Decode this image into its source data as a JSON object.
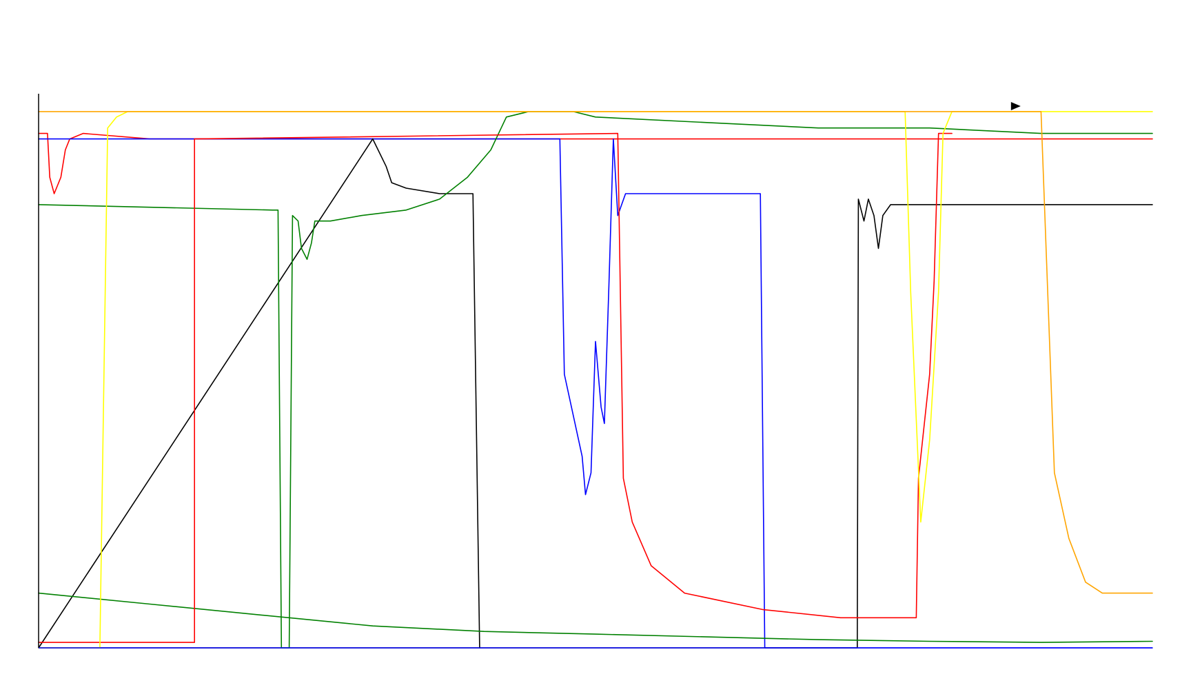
{
  "chart_data": {
    "type": "line",
    "title": "",
    "xlabel": "",
    "ylabel": "",
    "xlim": [
      0,
      1000
    ],
    "ylim": [
      0,
      100
    ],
    "grid": false,
    "legend": "none",
    "colors": {
      "axis": "#000000",
      "background": "#ffffff",
      "marker": "#000000"
    },
    "marker": {
      "shape": "arrow-right",
      "x": 878,
      "y": 99
    },
    "series": [
      {
        "color": "#ff0000",
        "points": [
          [
            0,
            94
          ],
          [
            8,
            94
          ],
          [
            10,
            86
          ],
          [
            14,
            83
          ],
          [
            20,
            86
          ],
          [
            24,
            91
          ],
          [
            28,
            93
          ],
          [
            40,
            94
          ],
          [
            100,
            93
          ],
          [
            200,
            93
          ],
          [
            300,
            93
          ],
          [
            400,
            93
          ],
          [
            500,
            93
          ],
          [
            600,
            93
          ],
          [
            700,
            93
          ],
          [
            800,
            93
          ],
          [
            900,
            93
          ],
          [
            1000,
            93
          ]
        ]
      },
      {
        "color": "#0000ff",
        "points": [
          [
            0,
            93
          ],
          [
            140,
            93
          ],
          [
            300,
            93
          ],
          [
            468,
            93
          ],
          [
            472,
            50
          ],
          [
            488,
            35
          ],
          [
            491,
            28
          ],
          [
            496,
            32
          ],
          [
            500,
            56
          ],
          [
            505,
            44
          ],
          [
            508,
            41
          ],
          [
            512,
            66
          ],
          [
            516,
            93
          ],
          [
            520,
            79
          ],
          [
            527,
            83
          ],
          [
            545,
            83
          ],
          [
            648,
            83
          ],
          [
            652,
            0
          ],
          [
            1000,
            0
          ]
        ]
      },
      {
        "color": "#000000",
        "points": [
          [
            0,
            0
          ],
          [
            10,
            0
          ],
          [
            20,
            0
          ],
          [
            60,
            0
          ],
          [
            100,
            0
          ],
          [
            150,
            0
          ],
          [
            200,
            0
          ],
          [
            250,
            0
          ],
          [
            300,
            0
          ],
          [
            350,
            0
          ],
          [
            400,
            0
          ],
          [
            450,
            0
          ],
          [
            500,
            0
          ],
          [
            550,
            0
          ],
          [
            600,
            0
          ],
          [
            630,
            0
          ],
          [
            645,
            0
          ],
          [
            735,
            0
          ],
          [
            736,
            82
          ],
          [
            741,
            78
          ],
          [
            745,
            82
          ],
          [
            750,
            79
          ],
          [
            754,
            73
          ],
          [
            758,
            79
          ],
          [
            765,
            81
          ],
          [
            795,
            81
          ],
          [
            1000,
            81
          ]
        ]
      },
      {
        "color": "#000000",
        "points": [
          [
            0,
            0
          ],
          [
            300,
            93
          ],
          [
            312,
            88
          ],
          [
            317,
            85
          ],
          [
            330,
            84
          ],
          [
            360,
            83
          ],
          [
            390,
            83
          ],
          [
            396,
            0
          ]
        ]
      },
      {
        "color": "#008000",
        "points": [
          [
            0,
            81
          ],
          [
            210,
            80
          ],
          [
            215,
            80
          ],
          [
            218,
            0
          ],
          [
            222,
            0
          ],
          [
            225,
            0
          ],
          [
            228,
            79
          ],
          [
            233,
            78
          ],
          [
            236,
            73
          ],
          [
            241,
            71
          ],
          [
            245,
            74
          ],
          [
            248,
            78
          ],
          [
            262,
            78
          ],
          [
            290,
            79
          ],
          [
            330,
            80
          ],
          [
            360,
            82
          ],
          [
            385,
            86
          ],
          [
            406,
            91
          ],
          [
            420,
            97
          ],
          [
            440,
            98
          ],
          [
            480,
            98
          ],
          [
            500,
            97
          ],
          [
            600,
            96
          ],
          [
            700,
            95
          ],
          [
            800,
            95
          ],
          [
            900,
            94
          ],
          [
            1000,
            94
          ]
        ]
      },
      {
        "color": "#008000",
        "points": [
          [
            0,
            10
          ],
          [
            100,
            8
          ],
          [
            200,
            6
          ],
          [
            300,
            4
          ],
          [
            400,
            3
          ],
          [
            500,
            2.5
          ],
          [
            600,
            2
          ],
          [
            700,
            1.5
          ],
          [
            800,
            1.2
          ],
          [
            900,
            1
          ],
          [
            1000,
            1.2
          ]
        ]
      },
      {
        "color": "#ff0000",
        "points": [
          [
            0,
            1
          ],
          [
            130,
            1
          ],
          [
            140,
            1
          ],
          [
            140,
            93
          ],
          [
            520,
            94
          ],
          [
            525,
            31
          ],
          [
            533,
            23
          ],
          [
            550,
            15
          ],
          [
            580,
            10
          ],
          [
            650,
            7
          ],
          [
            720,
            5.5
          ],
          [
            788,
            5.5
          ],
          [
            790,
            31
          ],
          [
            800,
            50
          ],
          [
            804,
            67
          ],
          [
            808,
            94
          ],
          [
            812,
            94
          ],
          [
            820,
            94
          ]
        ]
      },
      {
        "color": "#ffff00",
        "points": [
          [
            0,
            0
          ],
          [
            55,
            0
          ],
          [
            62,
            95
          ],
          [
            70,
            97
          ],
          [
            80,
            98
          ],
          [
            560,
            98
          ],
          [
            570,
            98
          ],
          [
            778,
            98
          ],
          [
            783,
            65
          ],
          [
            792,
            23
          ],
          [
            800,
            38
          ],
          [
            808,
            65
          ],
          [
            812,
            94
          ],
          [
            820,
            98
          ],
          [
            1000,
            98
          ]
        ]
      },
      {
        "color": "#ffa500",
        "points": [
          [
            0,
            98
          ],
          [
            900,
            98
          ],
          [
            912,
            32
          ],
          [
            925,
            20
          ],
          [
            940,
            12
          ],
          [
            955,
            10
          ],
          [
            970,
            10
          ],
          [
            1000,
            10
          ]
        ]
      }
    ]
  }
}
